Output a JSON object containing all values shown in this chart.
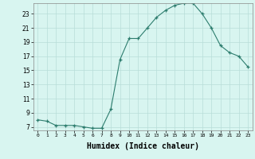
{
  "x": [
    0,
    1,
    2,
    3,
    4,
    5,
    6,
    7,
    8,
    9,
    10,
    11,
    12,
    13,
    14,
    15,
    16,
    17,
    18,
    19,
    20,
    21,
    22,
    23
  ],
  "y": [
    8.0,
    7.8,
    7.2,
    7.2,
    7.2,
    7.0,
    6.8,
    6.8,
    9.5,
    16.5,
    19.5,
    19.5,
    21.0,
    22.5,
    23.5,
    24.2,
    24.5,
    24.5,
    23.0,
    21.0,
    18.5,
    17.5,
    17.0,
    15.5
  ],
  "line_color": "#2d7d6e",
  "marker": "+",
  "marker_size": 3,
  "bg_color": "#d8f5f0",
  "grid_color": "#b8ddd8",
  "xlabel": "Humidex (Indice chaleur)",
  "xlabel_fontsize": 7,
  "ylabel_ticks": [
    7,
    9,
    11,
    13,
    15,
    17,
    19,
    21,
    23
  ],
  "xlim": [
    -0.5,
    23.5
  ],
  "ylim": [
    6.5,
    24.5
  ]
}
